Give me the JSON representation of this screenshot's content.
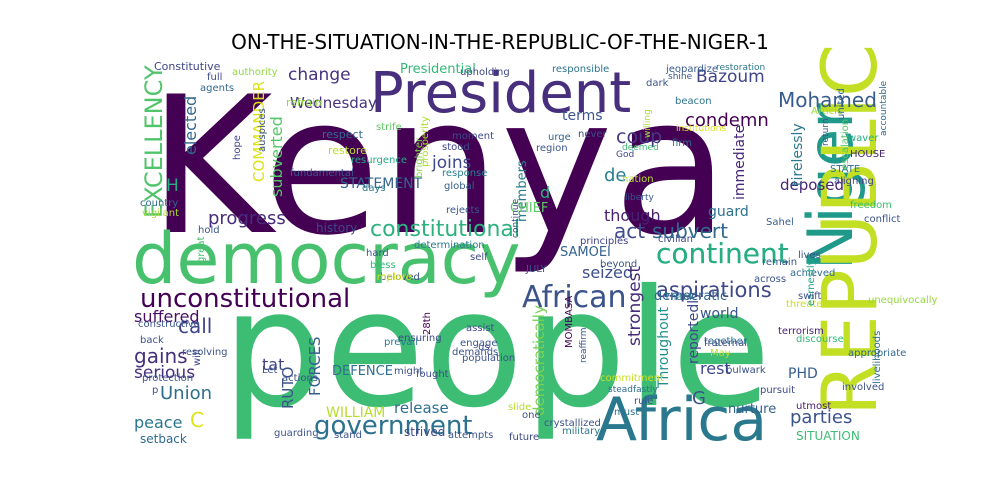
{
  "title": "ON-THE-SITUATION-IN-THE-REPUBLIC-OF-THE-NIGER-1",
  "words": [
    {
      "text": "Kenya",
      "color": "#440154"
    },
    {
      "text": "people",
      "color": "#3dbc74"
    },
    {
      "text": "democracy",
      "color": "#48c16e"
    },
    {
      "text": "President",
      "color": "#472f7d"
    },
    {
      "text": "Africa",
      "color": "#2a788e"
    },
    {
      "text": "Niger",
      "color": "#1f9a8a"
    },
    {
      "text": "REPUBLIC",
      "color": "#c2df23"
    },
    {
      "text": "unconstitutional",
      "color": "#440154"
    },
    {
      "text": "African",
      "color": "#3b528b"
    },
    {
      "text": "continent",
      "color": "#27ad81"
    },
    {
      "text": "government",
      "color": "#2c728e"
    },
    {
      "text": "constitutional",
      "color": "#2db27d"
    },
    {
      "text": "EXCELLENCY",
      "color": "#50c46a"
    },
    {
      "text": "Mohamed",
      "color": "#365c8d"
    },
    {
      "text": "Bazoum",
      "color": "#414487"
    },
    {
      "text": "change",
      "color": "#46327e"
    },
    {
      "text": "progress",
      "color": "#472c7a"
    },
    {
      "text": "gains",
      "color": "#46307e"
    },
    {
      "text": "aspirations",
      "color": "#3f4889"
    },
    {
      "text": "subvert",
      "color": "#31688e"
    },
    {
      "text": "coup",
      "color": "#443983"
    },
    {
      "text": "act",
      "color": "#3e4a89"
    },
    {
      "text": "continent",
      "color": "#27ad81"
    },
    {
      "text": "Union",
      "color": "#2e6f8e"
    },
    {
      "text": "parties",
      "color": "#3a538b"
    },
    {
      "text": "call",
      "color": "#404588"
    },
    {
      "text": "peace",
      "color": "#2a768e"
    },
    {
      "text": "Wednesday",
      "color": "#46337f"
    },
    {
      "text": "condemn",
      "color": "#440154"
    },
    {
      "text": "Presidential",
      "color": "#35b779"
    },
    {
      "text": "SAMOEI",
      "color": "#33638d"
    },
    {
      "text": "seized",
      "color": "#3c4f8a"
    },
    {
      "text": "deposed",
      "color": "#482475"
    },
    {
      "text": "world",
      "color": "#3a548c"
    },
    {
      "text": "rest",
      "color": "#3f4788"
    },
    {
      "text": "serious",
      "color": "#46307e"
    },
    {
      "text": "suffered",
      "color": "#471063"
    },
    {
      "text": "release",
      "color": "#2e6e8e"
    },
    {
      "text": "strongest",
      "color": "#472c7a"
    },
    {
      "text": "democratically",
      "color": "#7ad151"
    },
    {
      "text": "reportedly",
      "color": "#3e4989"
    },
    {
      "text": "Throughout",
      "color": "#21918c"
    },
    {
      "text": "members",
      "color": "#287c8e"
    },
    {
      "text": "terms",
      "color": "#3b528b"
    },
    {
      "text": "joins",
      "color": "#3e4a89"
    },
    {
      "text": "though",
      "color": "#482071"
    },
    {
      "text": "STATEMENT",
      "color": "#32648e"
    },
    {
      "text": "DEFENCE",
      "color": "#2d708e"
    },
    {
      "text": "FORCES",
      "color": "#355f8d"
    },
    {
      "text": "RUTO",
      "color": "#3b528b"
    },
    {
      "text": "WILLIAM",
      "color": "#b5de2b"
    },
    {
      "text": "COMMANDER",
      "color": "#dde318"
    },
    {
      "text": "CHIEF",
      "color": "#5ec962"
    },
    {
      "text": "SITUATION",
      "color": "#3dbc74"
    },
    {
      "text": "PHD",
      "color": "#365d8d"
    },
    {
      "text": "democratic",
      "color": "#31678e"
    },
    {
      "text": "immediate",
      "color": "#482677"
    },
    {
      "text": "tirelessly",
      "color": "#2a788e"
    },
    {
      "text": "guard",
      "color": "#2c728e"
    },
    {
      "text": "nurture",
      "color": "#33628d"
    },
    {
      "text": "strived",
      "color": "#3f4889"
    },
    {
      "text": "setback",
      "color": "#2f6b8e"
    },
    {
      "text": "history",
      "color": "#3f4788"
    },
    {
      "text": "elected",
      "color": "#31688e"
    },
    {
      "text": "subverted",
      "color": "#56c667"
    },
    {
      "text": "tat",
      "color": "#414487"
    },
    {
      "text": "C",
      "color": "#dde318"
    },
    {
      "text": "H",
      "color": "#27ad81"
    },
    {
      "text": "G",
      "color": "#3b528b"
    },
    {
      "text": "de",
      "color": "#277f8e"
    },
    {
      "text": "d",
      "color": "#2db27d"
    },
    {
      "text": "Constitutive",
      "color": "#404688"
    },
    {
      "text": "authority",
      "color": "#90d743"
    },
    {
      "text": "full",
      "color": "#3e4a89"
    },
    {
      "text": "agents",
      "color": "#31688e"
    },
    {
      "text": "refrain",
      "color": "#8fd744"
    },
    {
      "text": "respect",
      "color": "#2f6c8e"
    },
    {
      "text": "restore",
      "color": "#b8de29"
    },
    {
      "text": "strife",
      "color": "#5ec962"
    },
    {
      "text": "hope",
      "color": "#3f4788"
    },
    {
      "text": "auspices",
      "color": "#3c508b"
    },
    {
      "text": "fundamental",
      "color": "#3a548c"
    },
    {
      "text": "resurgence",
      "color": "#22a785"
    },
    {
      "text": "days",
      "color": "#287d8e"
    },
    {
      "text": "country",
      "color": "#31688e"
    },
    {
      "text": "vigilant",
      "color": "#aadc32"
    },
    {
      "text": "hold",
      "color": "#3b528b"
    },
    {
      "text": "great",
      "color": "#46c06f"
    },
    {
      "text": "prosperity",
      "color": "#addc30"
    },
    {
      "text": "brighter",
      "color": "#84d44b"
    },
    {
      "text": "stood",
      "color": "#3f4889"
    },
    {
      "text": "moment",
      "color": "#3e4a89"
    },
    {
      "text": "response",
      "color": "#277f8e"
    },
    {
      "text": "global",
      "color": "#355e8d"
    },
    {
      "text": "rejects",
      "color": "#38588c"
    },
    {
      "text": "upholding",
      "color": "#3f4788"
    },
    {
      "text": "never",
      "color": "#3e4a89"
    },
    {
      "text": "urge",
      "color": "#33638d"
    },
    {
      "text": "region",
      "color": "#3a548c"
    },
    {
      "text": "continue",
      "color": "#3f4788"
    },
    {
      "text": "responsible",
      "color": "#2c738e"
    },
    {
      "text": "jeopardize",
      "color": "#375a8c"
    },
    {
      "text": "shine",
      "color": "#3a548c"
    },
    {
      "text": "dark",
      "color": "#3b528b"
    },
    {
      "text": "beacon",
      "color": "#2c738e"
    },
    {
      "text": "restoration",
      "color": "#2a788e"
    },
    {
      "text": "institutions",
      "color": "#dde318"
    },
    {
      "text": "firm",
      "color": "#2c728e"
    },
    {
      "text": "willing",
      "color": "#a5db36"
    },
    {
      "text": "deemed",
      "color": "#3dbc74"
    },
    {
      "text": "God",
      "color": "#3e4a89"
    },
    {
      "text": "nation",
      "color": "#b5de2b"
    },
    {
      "text": "liberty",
      "color": "#3a548c"
    },
    {
      "text": "Article",
      "color": "#a2da37"
    },
    {
      "text": "return",
      "color": "#3a548c"
    },
    {
      "text": "united",
      "color": "#32648e"
    },
    {
      "text": "waver",
      "color": "#27ad81"
    },
    {
      "text": "HOUSE",
      "color": "#482878"
    },
    {
      "text": "STATE",
      "color": "#2d708e"
    },
    {
      "text": "aligning",
      "color": "#3f4788"
    },
    {
      "text": "escalation",
      "color": "#56c667"
    },
    {
      "text": "accountable",
      "color": "#31688e"
    },
    {
      "text": "freedom",
      "color": "#3dbc74"
    },
    {
      "text": "conflict",
      "color": "#3b528b"
    },
    {
      "text": "Sahel",
      "color": "#355f8d"
    },
    {
      "text": "remain",
      "color": "#3a548c"
    },
    {
      "text": "lives",
      "color": "#3b528b"
    },
    {
      "text": "principles",
      "color": "#414487"
    },
    {
      "text": "civilian",
      "color": "#3f4788"
    },
    {
      "text": "achieved",
      "color": "#2f6c8e"
    },
    {
      "text": "threaten",
      "color": "#c8e020"
    },
    {
      "text": "unequivocally",
      "color": "#95d840"
    },
    {
      "text": "earnestly",
      "color": "#20a386"
    },
    {
      "text": "swift",
      "color": "#3b528b"
    },
    {
      "text": "across",
      "color": "#3b528b"
    },
    {
      "text": "Thank",
      "color": "#2a788e"
    },
    {
      "text": "terrorism",
      "color": "#482475"
    },
    {
      "text": "discourse",
      "color": "#37b878"
    },
    {
      "text": "appropriate",
      "color": "#31688e"
    },
    {
      "text": "livelihoods",
      "color": "#2e6f8e"
    },
    {
      "text": "involved",
      "color": "#3b528b"
    },
    {
      "text": "together",
      "color": "#2a788e"
    },
    {
      "text": "fraternal",
      "color": "#3e4a89"
    },
    {
      "text": "May",
      "color": "#b8de29"
    },
    {
      "text": "bulwark",
      "color": "#3b528b"
    },
    {
      "text": "pursuit",
      "color": "#3e4a89"
    },
    {
      "text": "utmost",
      "color": "#482071"
    },
    {
      "text": "rule",
      "color": "#3b528b"
    },
    {
      "text": "must",
      "color": "#2c728e"
    },
    {
      "text": "steadfastly",
      "color": "#2f6c8e"
    },
    {
      "text": "commitment",
      "color": "#c8e020"
    },
    {
      "text": "reaffirm",
      "color": "#3a548c"
    },
    {
      "text": "MOMBASA",
      "color": "#440154"
    },
    {
      "text": "slide",
      "color": "#b5de2b"
    },
    {
      "text": "one",
      "color": "#3a548c"
    },
    {
      "text": "crystallized",
      "color": "#3b528b"
    },
    {
      "text": "military",
      "color": "#2a788e"
    },
    {
      "text": "future",
      "color": "#3e4a89"
    },
    {
      "text": "attempts",
      "color": "#3b528b"
    },
    {
      "text": "stand",
      "color": "#3a548c"
    },
    {
      "text": "fought",
      "color": "#3e4a89"
    },
    {
      "text": "actions",
      "color": "#3b528b"
    },
    {
      "text": "guarding",
      "color": "#3a548c"
    },
    {
      "text": "prevail",
      "color": "#2a788e"
    },
    {
      "text": "might",
      "color": "#3b528b"
    },
    {
      "text": "ensuring",
      "color": "#3e4a89"
    },
    {
      "text": "28th",
      "color": "#440154"
    },
    {
      "text": "demands",
      "color": "#3b528b"
    },
    {
      "text": "assist",
      "color": "#3e4a89"
    },
    {
      "text": "engage",
      "color": "#3a548c"
    },
    {
      "text": "population",
      "color": "#3b528b"
    },
    {
      "text": "us",
      "color": "#3e4a89"
    },
    {
      "text": "JULY",
      "color": "#3b528b"
    },
    {
      "text": "beyond",
      "color": "#3a548c"
    },
    {
      "text": "self",
      "color": "#3e4a89"
    },
    {
      "text": "hard",
      "color": "#3b528b"
    },
    {
      "text": "bless",
      "color": "#35b779"
    },
    {
      "text": "beloved",
      "color": "#3b528b"
    },
    {
      "text": "implore",
      "color": "#d2e21b"
    },
    {
      "text": "determination",
      "color": "#2a788e"
    },
    {
      "text": "resolving",
      "color": "#3a548c"
    },
    {
      "text": "back",
      "color": "#3b528b"
    },
    {
      "text": "will",
      "color": "#3e4a89"
    },
    {
      "text": "constructive",
      "color": "#3a548c"
    },
    {
      "text": "Let",
      "color": "#3b528b"
    },
    {
      "text": "protection",
      "color": "#3a548c"
    },
    {
      "text": "p",
      "color": "#3b528b"
    }
  ]
}
